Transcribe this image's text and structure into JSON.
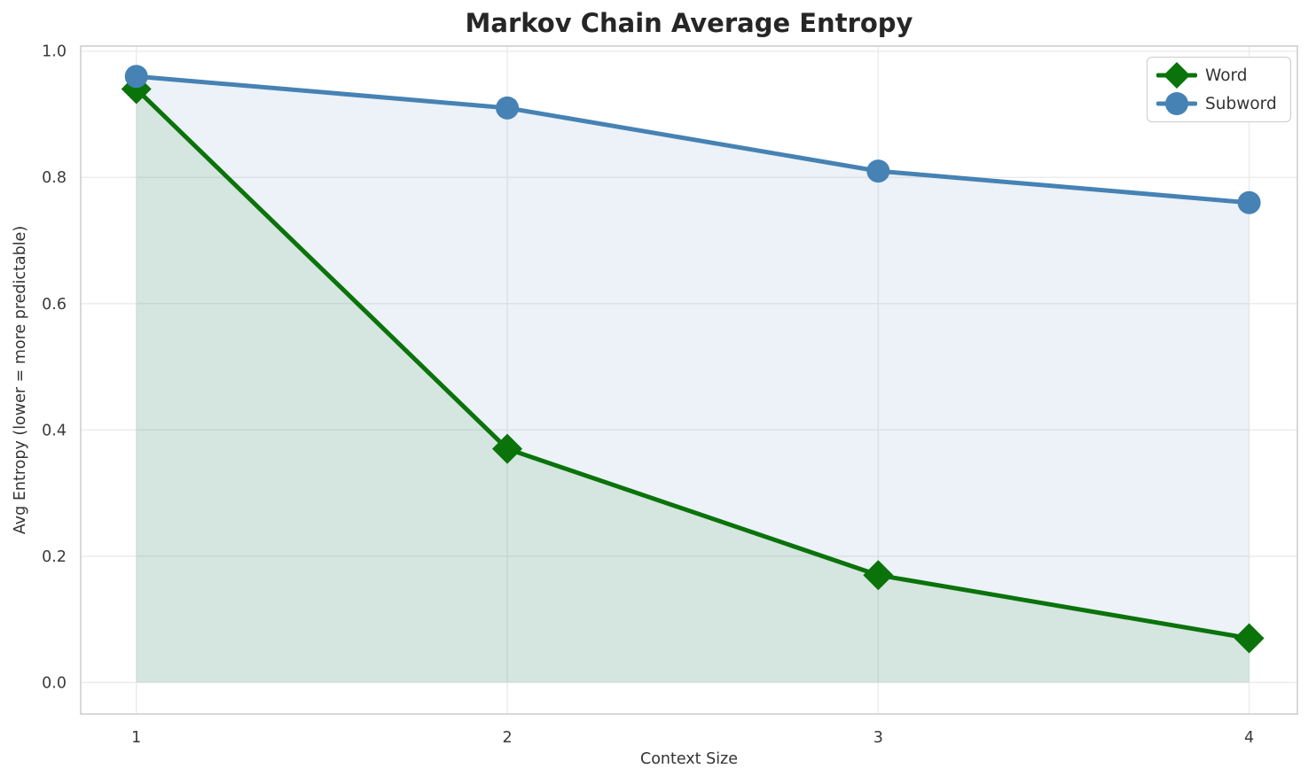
{
  "chart_data": {
    "type": "line",
    "title": "Markov Chain Average Entropy",
    "xlabel": "Context Size",
    "ylabel": "Avg Entropy (lower = more predictable)",
    "x": [
      1,
      2,
      3,
      4
    ],
    "series": [
      {
        "name": "Word",
        "values": [
          0.94,
          0.37,
          0.17,
          0.07
        ],
        "color": "#0a730a",
        "marker": "diamond",
        "fill_to_zero": true,
        "fill_alpha": 0.1
      },
      {
        "name": "Subword",
        "values": [
          0.96,
          0.91,
          0.81,
          0.76
        ],
        "color": "#4682b4",
        "marker": "circle",
        "fill_to_zero": true,
        "fill_alpha": 0.1
      }
    ],
    "xticks": [
      1,
      2,
      3,
      4
    ],
    "xtick_labels": [
      "1",
      "2",
      "3",
      "4"
    ],
    "yticks": [
      0.0,
      0.2,
      0.4,
      0.6,
      0.8,
      1.0
    ],
    "ytick_labels": [
      "0.0",
      "0.2",
      "0.4",
      "0.6",
      "0.8",
      "1.0"
    ],
    "xlim": [
      0.85,
      4.13
    ],
    "ylim": [
      -0.05,
      1.008
    ],
    "grid": true,
    "legend_position": "upper right"
  },
  "colors": {
    "background": "#ffffff",
    "grid": "#ececec",
    "spine": "#cccccc",
    "tick_text": "#3a3a3a",
    "title_text": "#262626",
    "label_text": "#333333",
    "legend_border": "#cccccc",
    "legend_bg": "#ffffff"
  }
}
